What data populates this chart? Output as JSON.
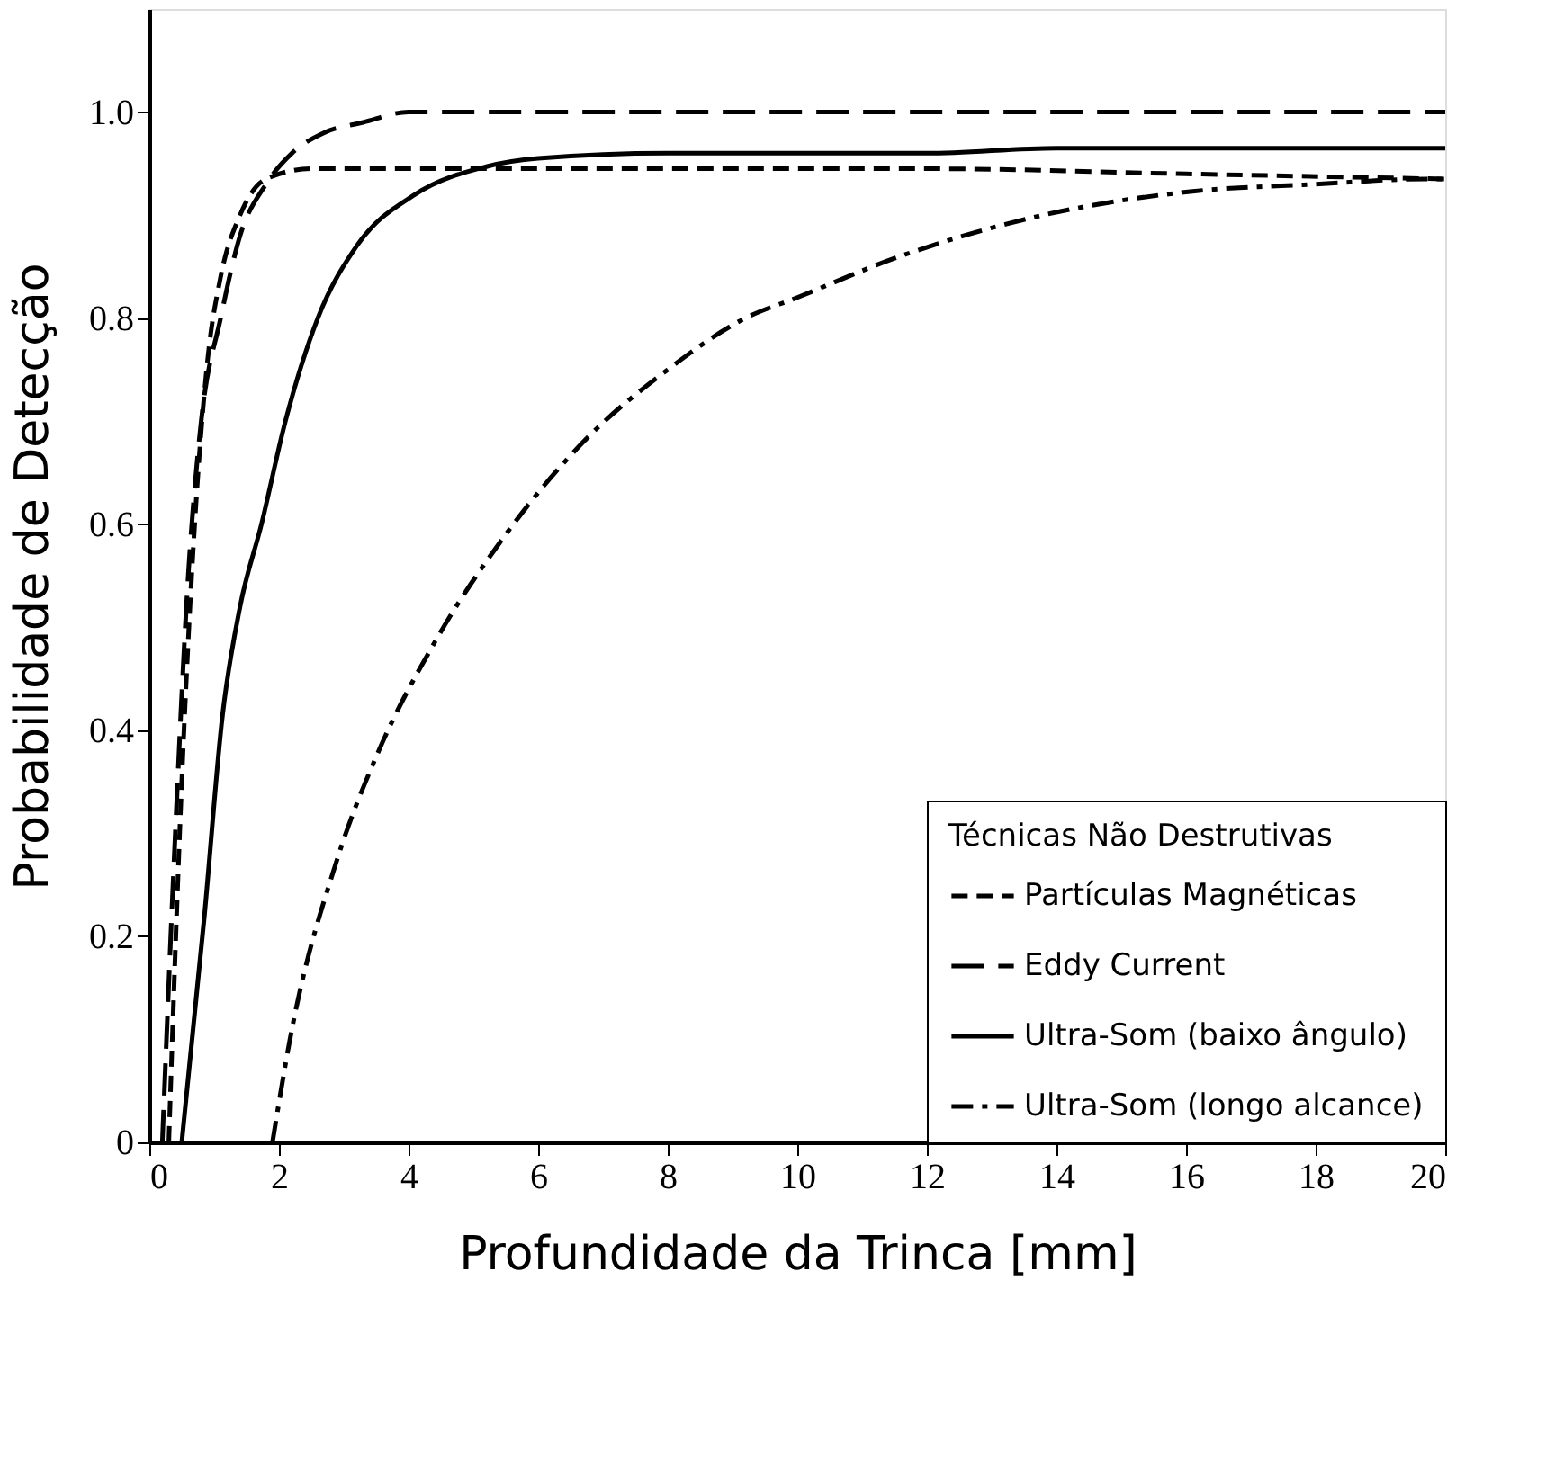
{
  "chart_data": {
    "type": "line",
    "xlabel": "Profundidade da Trinca [mm]",
    "ylabel": "Probabilidade de Detecção",
    "legend_title": "Técnicas Não Destrutivas",
    "xlim": [
      0,
      20
    ],
    "xticks": [
      0,
      2,
      4,
      6,
      8,
      10,
      12,
      14,
      16,
      18,
      20
    ],
    "ylim": [
      0,
      1.1
    ],
    "yticks": [
      0,
      0.2,
      0.4,
      0.6,
      0.8,
      {
        "value": 1.0,
        "label": "1.0"
      }
    ],
    "grid": false,
    "legend": "bottom right",
    "marker": "none",
    "series": [
      {
        "name": "Partículas Magnéticas",
        "color": "#000000",
        "line_style": "dashed",
        "x": [
          0.3,
          0.5,
          0.7,
          0.9,
          1.1,
          1.4,
          1.8,
          2.5,
          4,
          8,
          12,
          16,
          20
        ],
        "values": [
          0,
          0.35,
          0.6,
          0.76,
          0.84,
          0.9,
          0.935,
          0.945,
          0.945,
          0.945,
          0.945,
          0.94,
          0.935
        ]
      },
      {
        "name": "Eddy Current",
        "color": "#000000",
        "line_style": "longdashed",
        "x": [
          0.2,
          0.4,
          0.6,
          0.8,
          1.1,
          1.4,
          1.8,
          2.2,
          2.7,
          3.3,
          4,
          8,
          12,
          16,
          20
        ],
        "values": [
          0,
          0.3,
          0.55,
          0.7,
          0.8,
          0.88,
          0.93,
          0.96,
          0.98,
          0.99,
          1.0,
          1.0,
          1.0,
          1.0,
          1.0
        ]
      },
      {
        "name": "Ultra-Som (baixo ângulo)",
        "color": "#000000",
        "line_style": "solid",
        "x": [
          0.5,
          0.85,
          1.13,
          1.4,
          1.73,
          2.1,
          2.6,
          3.2,
          4.1,
          5.2,
          6,
          8,
          12,
          14,
          20
        ],
        "values": [
          0,
          0.22,
          0.415,
          0.52,
          0.6,
          0.7,
          0.8,
          0.87,
          0.92,
          0.947,
          0.955,
          0.96,
          0.96,
          0.965,
          0.965
        ]
      },
      {
        "name": "Ultra-Som (longo alcance)",
        "color": "#000000",
        "line_style": "dashdot",
        "x": [
          1.9,
          2.17,
          2.9,
          3.54,
          4.4,
          5.5,
          6.7,
          8,
          9.2,
          10,
          11.5,
          13.8,
          16.1,
          18,
          19.7,
          20
        ],
        "values": [
          0,
          0.1,
          0.275,
          0.38,
          0.485,
          0.59,
          0.68,
          0.75,
          0.8,
          0.82,
          0.858,
          0.9,
          0.923,
          0.93,
          0.935,
          0.935
        ]
      }
    ]
  }
}
